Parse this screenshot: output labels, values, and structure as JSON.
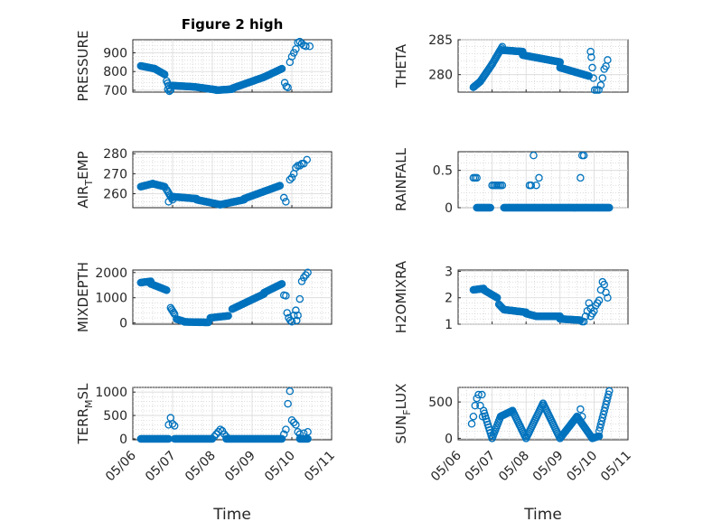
{
  "figure": {
    "title": "Figure 2 high",
    "marker_color": "#0072BD"
  },
  "chart_data": [
    {
      "type": "scatter",
      "position": "row1-left",
      "ylabel": "PRESSURE",
      "ylabel_sub": "",
      "ylim": [
        690,
        970
      ],
      "yticks": [
        700,
        800,
        900
      ],
      "xlim": [
        0,
        5
      ],
      "xticks": [],
      "xlabel": "",
      "title": "Figure 2 high",
      "segments": [
        {
          "x0": 0.2,
          "x1": 0.55,
          "y0": 830,
          "y1": 815
        },
        {
          "x0": 0.55,
          "x1": 0.8,
          "y0": 815,
          "y1": 785
        },
        {
          "x0": 0.85,
          "x1": 0.95,
          "y0": 750,
          "y1": 700
        },
        {
          "x0": 1.0,
          "x1": 1.55,
          "y0": 725,
          "y1": 718
        },
        {
          "x0": 1.55,
          "x1": 2.1,
          "y0": 718,
          "y1": 702
        },
        {
          "x0": 2.1,
          "x1": 2.5,
          "y0": 700,
          "y1": 706
        },
        {
          "x0": 2.5,
          "x1": 3.3,
          "y0": 710,
          "y1": 770
        },
        {
          "x0": 3.3,
          "x1": 3.75,
          "y0": 770,
          "y1": 815
        }
      ],
      "points": [
        [
          0.88,
          705
        ],
        [
          0.92,
          695
        ],
        [
          3.82,
          740
        ],
        [
          3.86,
          720
        ],
        [
          3.9,
          715
        ],
        [
          3.95,
          850
        ],
        [
          4.0,
          880
        ],
        [
          4.05,
          900
        ],
        [
          4.1,
          920
        ],
        [
          4.15,
          955
        ],
        [
          4.2,
          960
        ],
        [
          4.25,
          950
        ],
        [
          4.3,
          940
        ],
        [
          4.35,
          935
        ],
        [
          4.45,
          935
        ]
      ]
    },
    {
      "type": "scatter",
      "position": "row1-right",
      "ylabel": "THETA",
      "ylabel_sub": "",
      "ylim": [
        277.5,
        285
      ],
      "yticks": [
        280,
        285
      ],
      "xlim": [
        0,
        5
      ],
      "xticks": [],
      "xlabel": "",
      "title": "",
      "segments": [
        {
          "x0": 0.45,
          "x1": 0.65,
          "y0": 278.2,
          "y1": 279.0
        },
        {
          "x0": 0.65,
          "x1": 1.0,
          "y0": 279.0,
          "y1": 281.5
        },
        {
          "x0": 1.0,
          "x1": 1.3,
          "y0": 281.5,
          "y1": 284.0
        },
        {
          "x0": 1.3,
          "x1": 1.9,
          "y0": 283.5,
          "y1": 283.3
        },
        {
          "x0": 1.9,
          "x1": 3.0,
          "y0": 282.8,
          "y1": 281.8
        },
        {
          "x0": 3.0,
          "x1": 3.85,
          "y0": 281.0,
          "y1": 279.8
        }
      ],
      "points": [
        [
          3.9,
          283.3
        ],
        [
          3.92,
          282.5
        ],
        [
          3.95,
          281.0
        ],
        [
          3.98,
          279.5
        ],
        [
          4.02,
          277.8
        ],
        [
          4.08,
          277.8
        ],
        [
          4.14,
          277.8
        ],
        [
          4.2,
          278.5
        ],
        [
          4.25,
          279.5
        ],
        [
          4.3,
          280.8
        ],
        [
          4.35,
          281.2
        ],
        [
          4.4,
          282.1
        ]
      ]
    },
    {
      "type": "scatter",
      "position": "row2-left",
      "ylabel": "AIR",
      "ylabel_sub": "T",
      "ylabel_tail": "EMP",
      "ylim": [
        253,
        281
      ],
      "yticks": [
        260,
        270,
        280
      ],
      "xlim": [
        0,
        5
      ],
      "xticks": [],
      "xlabel": "",
      "title": "",
      "segments": [
        {
          "x0": 0.2,
          "x1": 0.5,
          "y0": 263.5,
          "y1": 265.0
        },
        {
          "x0": 0.5,
          "x1": 0.8,
          "y0": 265.0,
          "y1": 263.5
        },
        {
          "x0": 0.85,
          "x1": 1.0,
          "y0": 262.0,
          "y1": 257.0
        },
        {
          "x0": 1.0,
          "x1": 1.6,
          "y0": 258.5,
          "y1": 257.5
        },
        {
          "x0": 1.6,
          "x1": 2.2,
          "y0": 257.0,
          "y1": 254.5
        },
        {
          "x0": 2.2,
          "x1": 2.8,
          "y0": 254.5,
          "y1": 257.0
        },
        {
          "x0": 2.8,
          "x1": 3.7,
          "y0": 257.5,
          "y1": 264.0
        }
      ],
      "points": [
        [
          0.9,
          256
        ],
        [
          3.8,
          258
        ],
        [
          3.85,
          256
        ],
        [
          3.95,
          267
        ],
        [
          4.0,
          268
        ],
        [
          4.05,
          270
        ],
        [
          4.1,
          273
        ],
        [
          4.15,
          274
        ],
        [
          4.2,
          274
        ],
        [
          4.25,
          275
        ],
        [
          4.3,
          275
        ],
        [
          4.38,
          277
        ]
      ]
    },
    {
      "type": "scatter",
      "position": "row2-right",
      "ylabel": "RAINFALL",
      "ylabel_sub": "",
      "ylim": [
        0,
        0.75
      ],
      "yticks": [
        0,
        0.5
      ],
      "xlim": [
        0,
        5
      ],
      "xticks": [],
      "xlabel": "",
      "title": "",
      "segments": [
        {
          "x0": 0.55,
          "x1": 0.95,
          "y0": 0.0,
          "y1": 0.0
        },
        {
          "x0": 1.35,
          "x1": 4.45,
          "y0": 0.0,
          "y1": 0.0
        }
      ],
      "points": [
        [
          0.45,
          0.4
        ],
        [
          0.5,
          0.4
        ],
        [
          0.55,
          0.4
        ],
        [
          1.0,
          0.3
        ],
        [
          1.05,
          0.3
        ],
        [
          1.1,
          0.3
        ],
        [
          1.15,
          0.3
        ],
        [
          1.2,
          0.3
        ],
        [
          1.25,
          0.3
        ],
        [
          1.3,
          0.3
        ],
        [
          2.1,
          0.3
        ],
        [
          2.15,
          0.3
        ],
        [
          2.22,
          0.7
        ],
        [
          2.3,
          0.3
        ],
        [
          2.38,
          0.4
        ],
        [
          3.6,
          0.4
        ],
        [
          3.65,
          0.7
        ],
        [
          3.7,
          0.7
        ]
      ]
    },
    {
      "type": "scatter",
      "position": "row3-left",
      "ylabel": "MIXDEPTH",
      "ylabel_sub": "",
      "ylim": [
        -50,
        2100
      ],
      "yticks": [
        0,
        1000,
        2000
      ],
      "xlim": [
        0,
        5
      ],
      "xticks": [],
      "xlabel": "",
      "title": "",
      "segments": [
        {
          "x0": 0.2,
          "x1": 0.45,
          "y0": 1600,
          "y1": 1650
        },
        {
          "x0": 0.45,
          "x1": 0.85,
          "y0": 1550,
          "y1": 1300
        },
        {
          "x0": 0.95,
          "x1": 1.05,
          "y0": 600,
          "y1": 350
        },
        {
          "x0": 1.1,
          "x1": 1.3,
          "y0": 150,
          "y1": 50
        },
        {
          "x0": 1.3,
          "x1": 1.9,
          "y0": 40,
          "y1": 20
        },
        {
          "x0": 1.95,
          "x1": 2.4,
          "y0": 200,
          "y1": 280
        },
        {
          "x0": 2.5,
          "x1": 3.3,
          "y0": 550,
          "y1": 1150
        },
        {
          "x0": 3.3,
          "x1": 3.75,
          "y0": 1200,
          "y1": 1550
        }
      ],
      "points": [
        [
          3.8,
          1100
        ],
        [
          3.85,
          1080
        ],
        [
          3.88,
          400
        ],
        [
          3.92,
          200
        ],
        [
          3.96,
          100
        ],
        [
          4.0,
          50
        ],
        [
          4.05,
          300
        ],
        [
          4.1,
          500
        ],
        [
          4.15,
          300
        ],
        [
          4.2,
          950
        ],
        [
          4.25,
          1650
        ],
        [
          4.3,
          1800
        ],
        [
          4.35,
          1900
        ],
        [
          4.4,
          2000
        ],
        [
          4.12,
          100
        ]
      ]
    },
    {
      "type": "scatter",
      "position": "row3-right",
      "ylabel": "H2OMIXRA",
      "ylabel_sub": "",
      "ylim": [
        1,
        3.05
      ],
      "yticks": [
        1,
        2,
        3
      ],
      "xlim": [
        0,
        5
      ],
      "xticks": [],
      "xlabel": "",
      "title": "",
      "segments": [
        {
          "x0": 0.45,
          "x1": 0.75,
          "y0": 2.3,
          "y1": 2.35
        },
        {
          "x0": 0.75,
          "x1": 1.15,
          "y0": 2.3,
          "y1": 2.0
        },
        {
          "x0": 1.2,
          "x1": 1.35,
          "y0": 1.75,
          "y1": 1.55
        },
        {
          "x0": 1.35,
          "x1": 2.0,
          "y0": 1.55,
          "y1": 1.45
        },
        {
          "x0": 2.0,
          "x1": 2.3,
          "y0": 1.4,
          "y1": 1.3
        },
        {
          "x0": 2.3,
          "x1": 3.0,
          "y0": 1.3,
          "y1": 1.3
        },
        {
          "x0": 3.0,
          "x1": 3.6,
          "y0": 1.2,
          "y1": 1.15
        }
      ],
      "points": [
        [
          3.65,
          1.1
        ],
        [
          3.7,
          1.1
        ],
        [
          3.75,
          1.3
        ],
        [
          3.8,
          1.5
        ],
        [
          3.85,
          1.8
        ],
        [
          3.9,
          1.6
        ],
        [
          3.95,
          1.4
        ],
        [
          4.0,
          1.5
        ],
        [
          4.05,
          1.7
        ],
        [
          4.1,
          1.8
        ],
        [
          4.15,
          1.9
        ],
        [
          4.2,
          2.3
        ],
        [
          4.25,
          2.6
        ],
        [
          4.3,
          2.5
        ],
        [
          4.35,
          2.2
        ],
        [
          4.4,
          2.0
        ],
        [
          3.9,
          1.3
        ]
      ]
    },
    {
      "type": "scatter",
      "position": "row4-left",
      "ylabel": "TERR",
      "ylabel_sub": "M",
      "ylabel_tail": "SL",
      "ylim": [
        -20,
        1100
      ],
      "yticks": [
        0,
        500,
        1000
      ],
      "xlim": [
        0,
        5
      ],
      "xticks": [
        0,
        1,
        2,
        3,
        4,
        5
      ],
      "xticklabels": [
        "05/06",
        "05/07",
        "05/08",
        "05/09",
        "05/10",
        "05/11"
      ],
      "xlabel": "Time",
      "title": "",
      "segments": [
        {
          "x0": 0.2,
          "x1": 0.9,
          "y0": 0,
          "y1": 0
        },
        {
          "x0": 1.05,
          "x1": 2.0,
          "y0": 0,
          "y1": 0
        },
        {
          "x0": 2.35,
          "x1": 3.75,
          "y0": 0,
          "y1": 0
        },
        {
          "x0": 4.2,
          "x1": 4.4,
          "y0": 0,
          "y1": 0
        }
      ],
      "points": [
        [
          0.9,
          300
        ],
        [
          0.95,
          450
        ],
        [
          1.0,
          320
        ],
        [
          1.05,
          280
        ],
        [
          2.05,
          50
        ],
        [
          2.1,
          100
        ],
        [
          2.15,
          150
        ],
        [
          2.2,
          200
        ],
        [
          2.25,
          170
        ],
        [
          2.3,
          100
        ],
        [
          2.35,
          50
        ],
        [
          3.8,
          100
        ],
        [
          3.85,
          200
        ],
        [
          3.9,
          750
        ],
        [
          3.95,
          1020
        ],
        [
          4.0,
          400
        ],
        [
          4.05,
          350
        ],
        [
          4.1,
          300
        ],
        [
          4.15,
          150
        ],
        [
          4.2,
          100
        ],
        [
          4.3,
          120
        ],
        [
          4.4,
          150
        ]
      ]
    },
    {
      "type": "scatter",
      "position": "row4-right",
      "ylabel": "SUN",
      "ylabel_sub": "F",
      "ylabel_tail": "LUX",
      "ylim": [
        -20,
        700
      ],
      "yticks": [
        0,
        500
      ],
      "xlim": [
        0,
        5
      ],
      "xticks": [
        0,
        1,
        2,
        3,
        4,
        5
      ],
      "xticklabels": [
        "05/06",
        "05/07",
        "05/08",
        "05/09",
        "05/10",
        "05/11"
      ],
      "xlabel": "Time",
      "title": "",
      "segments": [
        {
          "x0": 0.75,
          "x1": 1.0,
          "y0": 380,
          "y1": 0
        },
        {
          "x0": 1.0,
          "x1": 1.25,
          "y0": 0,
          "y1": 300
        },
        {
          "x0": 1.25,
          "x1": 1.6,
          "y0": 300,
          "y1": 380
        },
        {
          "x0": 1.6,
          "x1": 2.0,
          "y0": 380,
          "y1": 0
        },
        {
          "x0": 2.0,
          "x1": 2.5,
          "y0": 0,
          "y1": 480
        },
        {
          "x0": 2.5,
          "x1": 3.0,
          "y0": 480,
          "y1": 0
        },
        {
          "x0": 3.0,
          "x1": 3.5,
          "y0": 0,
          "y1": 300
        },
        {
          "x0": 3.5,
          "x1": 3.95,
          "y0": 300,
          "y1": 0
        },
        {
          "x0": 3.95,
          "x1": 4.15,
          "y0": 0,
          "y1": 30
        },
        {
          "x0": 4.15,
          "x1": 4.45,
          "y0": 100,
          "y1": 650
        }
      ],
      "points": [
        [
          0.4,
          200
        ],
        [
          0.45,
          300
        ],
        [
          0.5,
          450
        ],
        [
          0.55,
          550
        ],
        [
          0.6,
          600
        ],
        [
          0.65,
          450
        ],
        [
          0.7,
          600
        ],
        [
          0.72,
          300
        ],
        [
          3.6,
          400
        ],
        [
          3.65,
          300
        ]
      ]
    }
  ]
}
